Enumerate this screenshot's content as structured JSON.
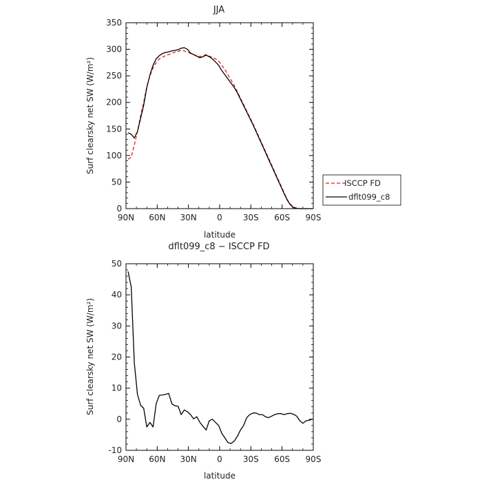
{
  "chart_data": [
    {
      "type": "line",
      "title": "JJA",
      "xlabel": "latitude",
      "ylabel": "Surf clearsky net SW (W/m²)",
      "xlim": [
        90,
        -90
      ],
      "ylim": [
        0,
        350
      ],
      "xticks": [
        90,
        60,
        30,
        0,
        -30,
        -60,
        -90
      ],
      "xtick_labels": [
        "90N",
        "60N",
        "30N",
        "0",
        "30S",
        "60S",
        "90S"
      ],
      "yticks": [
        0,
        50,
        100,
        150,
        200,
        250,
        300,
        350
      ],
      "legend_position": "right-bottom-outside",
      "series": [
        {
          "name": "ISCCP FD",
          "color": "#e41a1c",
          "dash": "dashed",
          "x": [
            88,
            85,
            82,
            79,
            76,
            73,
            70,
            67,
            64,
            61,
            58,
            55,
            52,
            49,
            46,
            43,
            40,
            37,
            34,
            31,
            28,
            25,
            22,
            19,
            16,
            13,
            10,
            7,
            4,
            1,
            -2,
            -5,
            -8,
            -11,
            -14,
            -17,
            -20,
            -23,
            -26,
            -29,
            -32,
            -35,
            -38,
            -41,
            -44,
            -47,
            -50,
            -53,
            -56,
            -59,
            -62,
            -65,
            -68,
            -71,
            -74,
            -77,
            -80,
            -83,
            -86,
            -89
          ],
          "y": [
            93,
            97,
            120,
            145,
            175,
            200,
            230,
            250,
            265,
            275,
            282,
            285,
            288,
            290,
            292,
            295,
            296,
            298,
            297,
            295,
            292,
            290,
            288,
            286,
            288,
            290,
            287,
            285,
            282,
            278,
            270,
            262,
            252,
            242,
            232,
            220,
            208,
            196,
            184,
            172,
            160,
            147,
            134,
            121,
            108,
            95,
            82,
            69,
            56,
            43,
            30,
            17,
            8,
            3,
            1,
            0,
            0,
            0,
            0,
            0
          ]
        },
        {
          "name": "dflt099_c8",
          "color": "#000000",
          "dash": "solid",
          "x": [
            88,
            85,
            82,
            79,
            76,
            73,
            70,
            67,
            64,
            61,
            58,
            55,
            52,
            49,
            46,
            43,
            40,
            37,
            34,
            31,
            28,
            25,
            22,
            19,
            16,
            13,
            10,
            7,
            4,
            1,
            -2,
            -5,
            -8,
            -11,
            -14,
            -17,
            -20,
            -23,
            -26,
            -29,
            -32,
            -35,
            -38,
            -41,
            -44,
            -47,
            -50,
            -53,
            -56,
            -59,
            -62,
            -65,
            -68,
            -71,
            -74,
            -77,
            -80,
            -83,
            -86,
            -89
          ],
          "y": [
            143,
            140,
            133,
            145,
            170,
            195,
            228,
            252,
            270,
            282,
            288,
            292,
            294,
            295,
            297,
            298,
            299,
            302,
            303,
            300,
            293,
            290,
            287,
            284,
            286,
            289,
            286,
            282,
            276,
            270,
            260,
            252,
            244,
            236,
            228,
            218,
            206,
            194,
            182,
            170,
            158,
            145,
            132,
            119,
            106,
            93,
            80,
            67,
            54,
            41,
            28,
            16,
            7,
            2,
            0.5,
            0,
            0,
            0,
            0,
            0
          ]
        }
      ]
    },
    {
      "type": "line",
      "title": "dflt099_c8 − ISCCP FD",
      "xlabel": "latitude",
      "ylabel": "Surf clearsky net SW (W/m²)",
      "xlim": [
        90,
        -90
      ],
      "ylim": [
        -10,
        50
      ],
      "xticks": [
        90,
        60,
        30,
        0,
        -30,
        -60,
        -90
      ],
      "xtick_labels": [
        "90N",
        "60N",
        "30N",
        "0",
        "30S",
        "60S",
        "90S"
      ],
      "yticks": [
        -10,
        0,
        10,
        20,
        30,
        40,
        50
      ],
      "series": [
        {
          "color": "#000000",
          "dash": "solid",
          "x": [
            88,
            85,
            82,
            79,
            76,
            73,
            70,
            67,
            64,
            61,
            58,
            55,
            52,
            49,
            46,
            43,
            40,
            37,
            34,
            31,
            28,
            25,
            22,
            19,
            16,
            13,
            10,
            7,
            4,
            1,
            -2,
            -5,
            -8,
            -11,
            -14,
            -17,
            -20,
            -23,
            -26,
            -29,
            -32,
            -35,
            -38,
            -41,
            -44,
            -47,
            -50,
            -53,
            -56,
            -59,
            -62,
            -65,
            -68,
            -71,
            -74,
            -77,
            -80,
            -83,
            -86,
            -89
          ],
          "y": [
            47.5,
            42.5,
            18,
            8,
            4.5,
            3.5,
            -2.5,
            -1,
            -2.5,
            5,
            7.7,
            7.8,
            8,
            8.3,
            5,
            4.3,
            4.2,
            1.5,
            3,
            2.4,
            1.5,
            0.1,
            0.8,
            -1,
            -2.3,
            -3.5,
            -0.5,
            0,
            -1,
            -2,
            -4.5,
            -6,
            -7.5,
            -7.8,
            -7,
            -5.5,
            -3.5,
            -2,
            0.5,
            1.5,
            2,
            2,
            1.5,
            1.5,
            0.8,
            0.5,
            1,
            1.5,
            1.8,
            1.8,
            1.5,
            1.8,
            1.9,
            1.6,
            1,
            -0.5,
            -1.3,
            -0.5,
            -0.3,
            0
          ]
        }
      ]
    }
  ]
}
